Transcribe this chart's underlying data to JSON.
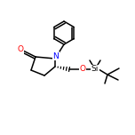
{
  "background": "#ffffff",
  "bond_color": "#000000",
  "atom_colors": {
    "N": "#0000ff",
    "O": "#ff0000",
    "Si": "#000000"
  },
  "figsize": [
    1.52,
    1.52
  ],
  "dpi": 100,
  "lw": 1.1,
  "fontsize": 6.5
}
